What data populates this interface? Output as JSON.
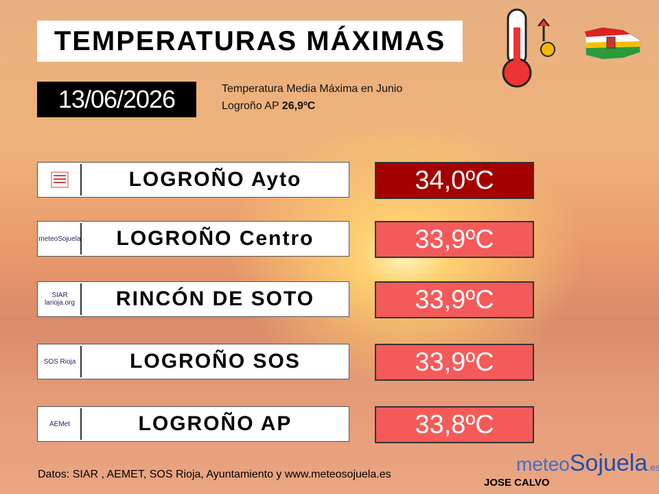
{
  "header": {
    "title": "TEMPERATURAS MÁXIMAS",
    "date": "13/06/2026",
    "note_line1": "Temperatura Media Máxima  en Junio",
    "note_line2_label": "Logroño AP",
    "note_line2_value": "26,9ºC"
  },
  "rows": [
    {
      "logo": "",
      "station": "LOGROÑO Ayto",
      "temperature": "34,0ºC"
    },
    {
      "logo": "meteoSojuela",
      "station": "LOGROÑO Centro",
      "temperature": "33,9ºC"
    },
    {
      "logo": "SIAR larioja.org",
      "station": "RINCÓN DE SOTO",
      "temperature": "33,9ºC"
    },
    {
      "logo": "SOS Rioja",
      "station": "LOGROÑO SOS",
      "temperature": "33,9ºC"
    },
    {
      "logo": "AEMet",
      "station": "LOGROÑO AP",
      "temperature": "33,8ºC"
    }
  ],
  "footer": {
    "sources": "Datos: SIAR , AEMET, SOS Rioja, Ayuntamiento y www.meteosojuela.es",
    "author": "JOSE CALVO",
    "brand_meteo": "meteo",
    "brand_sojuela": "Sojuela",
    "brand_es": ".es"
  }
}
